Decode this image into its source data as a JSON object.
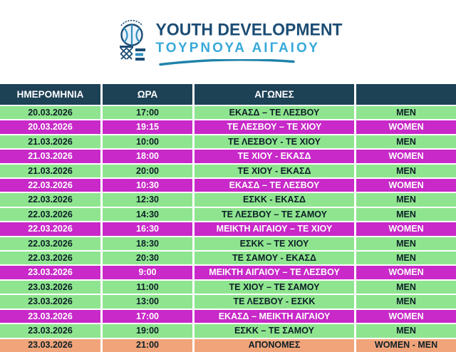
{
  "logo": {
    "title": "YOUTH DEVELOPMENT",
    "subtitle": "ΤΟΥΡΝΟΥΑ ΑΙΓΑΙΟΥ",
    "icon": "basketball-net-icon"
  },
  "colors": {
    "header_bg": "#1d4155",
    "men_row_bg": "#8fe58f",
    "women_row_bg": "#c829c8",
    "final_row_bg": "#f1a47a",
    "dark_text": "#0d2027",
    "light_text": "#ffffff",
    "title_color": "#1c4d74",
    "subtitle_color": "#38a9da",
    "swoosh_color": "#1f83ab"
  },
  "table": {
    "headers": [
      "ΗΜΕΡΟΜΗΝΙΑ",
      "ΩΡΑ",
      "ΑΓΩΝΕΣ",
      ""
    ],
    "rows": [
      {
        "date": "20.03.2026",
        "time": "17:00",
        "match": "ΕΚΑΣΔ – ΤΕ ΛΕΣΒΟΥ",
        "category": "MEN",
        "type": "men"
      },
      {
        "date": "20.03.2026",
        "time": "19:15",
        "match": "ΤΕ ΛΕΣΒΟΥ – ΤΕ ΧΙΟΥ",
        "category": "WOMEN",
        "type": "women"
      },
      {
        "date": "21.03.2026",
        "time": "10:00",
        "match": "ΤΕ ΛΕΣΒΟΥ - ΤΕ ΧΙΟΥ",
        "category": "MEN",
        "type": "men"
      },
      {
        "date": "21.03.2026",
        "time": "18:00",
        "match": "ΤΕ ΧΙΟΥ - ΕΚΑΣΔ",
        "category": "WOMEN",
        "type": "women"
      },
      {
        "date": "21.03.2026",
        "time": "20:00",
        "match": "ΤΕ ΧΙΟΥ - ΕΚΑΣΔ",
        "category": "MEN",
        "type": "men"
      },
      {
        "date": "22.03.2026",
        "time": "10:30",
        "match": "ΕΚΑΣΔ – ΤΕ ΛΕΣΒΟΥ",
        "category": "WOMEN",
        "type": "women"
      },
      {
        "date": "22.03.2026",
        "time": "12:30",
        "match": "ΕΣΚΚ - ΕΚΑΣΔ",
        "category": "MEN",
        "type": "men"
      },
      {
        "date": "22.03.2026",
        "time": "14:30",
        "match": "ΤΕ ΛΕΣΒΟΥ – ΤΕ ΣΑΜΟΥ",
        "category": "MEN",
        "type": "men"
      },
      {
        "date": "22.03.2026",
        "time": "16:30",
        "match": "ΜΕΙΚΤΗ ΑΙΓΑΙΟΥ – ΤΕ ΧΙΟΥ",
        "category": "WOMEN",
        "type": "women"
      },
      {
        "date": "22.03.2026",
        "time": "18:30",
        "match": "ΕΣΚΚ – ΤΕ ΧΙΟΥ",
        "category": "MEN",
        "type": "men"
      },
      {
        "date": "22.03.2026",
        "time": "20:30",
        "match": "ΤΕ ΣΑΜΟΥ - ΕΚΑΣΔ",
        "category": "MEN",
        "type": "men"
      },
      {
        "date": "23.03.2026",
        "time": "9:00",
        "match": "ΜΕΙΚΤΗ ΑΙΓΑΙΟΥ – ΤΕ ΛΕΣΒΟΥ",
        "category": "WOMEN",
        "type": "women"
      },
      {
        "date": "23.03.2026",
        "time": "11:00",
        "match": "ΤΕ ΧΙΟΥ – ΤΕ ΣΑΜΟΥ",
        "category": "MEN",
        "type": "men"
      },
      {
        "date": "23.03.2026",
        "time": "13:00",
        "match": "ΤΕ ΛΕΣΒΟΥ - ΕΣΚΚ",
        "category": "MEN",
        "type": "men"
      },
      {
        "date": "23.03.2026",
        "time": "17:00",
        "match": "ΕΚΑΣΔ – ΜΕΙΚΤΗ ΑΙΓΑΙΟΥ",
        "category": "WOMEN",
        "type": "women"
      },
      {
        "date": "23.03.2026",
        "time": "19:00",
        "match": "ΕΣΚΚ – ΤΕ ΣΑΜΟΥ",
        "category": "MEN",
        "type": "men"
      },
      {
        "date": "23.03.2026",
        "time": "21:00",
        "match": "ΑΠΟΝΟΜΕΣ",
        "category": "WOMEN - MEN",
        "type": "final"
      }
    ]
  }
}
